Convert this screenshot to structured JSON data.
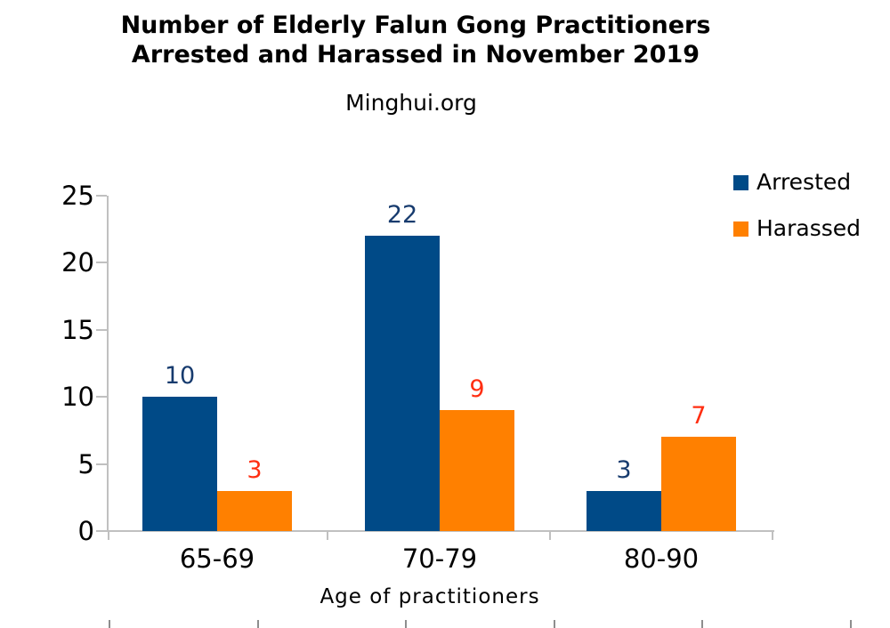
{
  "header": {
    "title_line1": "Number of Elderly Falun Gong Practitioners",
    "title_line2": "Arrested and Harassed in November 2019",
    "subtitle": "Minghui.org"
  },
  "colors": {
    "axis_line": "#C0C0C0",
    "bottom_ruler_tick": "#8E8E8E",
    "text": "#000000",
    "arrested_bar": "#004A87",
    "harassed_bar": "#FF8000",
    "arrested_value_label": "#173B6E",
    "harassed_value_label": "#FF2E11"
  },
  "chart_data": {
    "type": "bar",
    "title": "Number of Elderly Falun Gong Practitioners Arrested and Harassed in November 2019",
    "subtitle": "Minghui.org",
    "categories": [
      "65-69",
      "70-79",
      "80-90"
    ],
    "series": [
      {
        "name": "Arrested",
        "values": [
          10,
          22,
          3
        ],
        "color": "#004A87",
        "label_color": "#173B6E"
      },
      {
        "name": "Harassed",
        "values": [
          3,
          9,
          7
        ],
        "color": "#FF8000",
        "label_color": "#FF2E11"
      }
    ],
    "xlabel": "Age of practitioners",
    "ylabel": "",
    "ylim": [
      0,
      25
    ],
    "yticks": [
      0,
      5,
      10,
      15,
      20,
      25
    ],
    "grid": false,
    "data_labels": true,
    "legend_position": "top-right"
  }
}
